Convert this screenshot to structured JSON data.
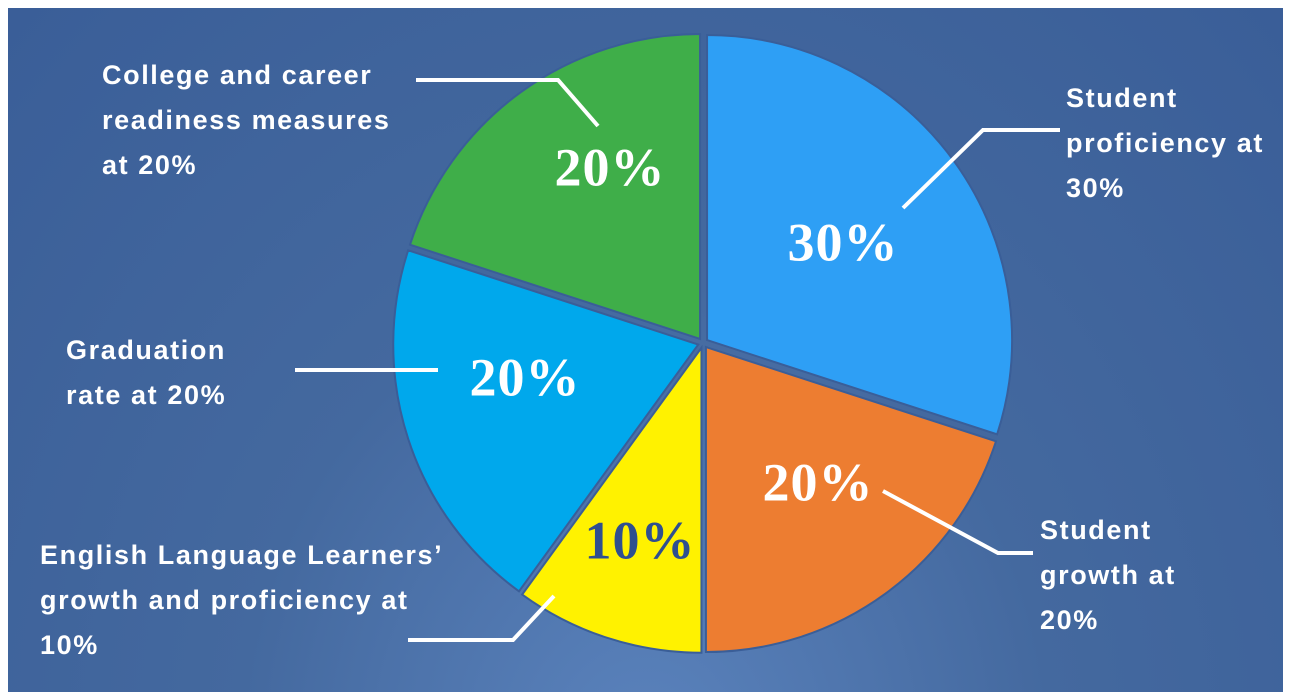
{
  "chart_data": {
    "type": "pie",
    "categories": [
      "Student proficiency at 30%",
      "Student growth at 20%",
      "English Language Learners’ growth and proficiency at 10%",
      "Graduation rate at 20%",
      "College and career readiness measures at 20%"
    ],
    "values": [
      30,
      20,
      10,
      20,
      20
    ],
    "value_labels": [
      "30%",
      "20%",
      "10%",
      "20%",
      "20%"
    ],
    "colors": [
      "#2e9ff5",
      "#ed7d31",
      "#fff200",
      "#00a8ec",
      "#3fae49"
    ]
  }
}
